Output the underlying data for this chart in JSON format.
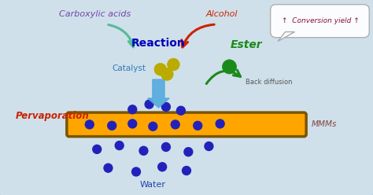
{
  "bg_color": "#cfe0ea",
  "membrane_color": "#FFA500",
  "membrane_edge_color": "#7a5500",
  "blue_ball_color": "#2222BB",
  "yellow_ball_color": "#BBAA00",
  "green_ball_color": "#1a8a1a",
  "arrow_blue_color": "#55aadd",
  "arrow_green_color": "#1a8a1a",
  "arrow_red_color": "#CC2200",
  "arrow_teal_color": "#55bb99",
  "text_carboxylic": "Carboxylic acids",
  "text_alcohol": "Alcohol",
  "text_reaction": "Reaction",
  "text_ester": "Ester",
  "text_catalyst": "Catalyst",
  "text_back_diffusion": "Back diffusion",
  "text_pervaporation": "Pervaporation",
  "text_mmms": "MMMs",
  "text_water": "Water",
  "text_conversion": "↑  Conversion yield ↑",
  "carboxylic_color": "#7744AA",
  "alcohol_color": "#CC2200",
  "reaction_color": "#0000BB",
  "ester_color": "#1a8a1a",
  "catalyst_color": "#3377BB",
  "pervaporation_color": "#CC2200",
  "mmms_color": "#884444",
  "water_color": "#2244AA",
  "conversion_color": "#881144",
  "border_color": "#aabbcc",
  "back_diff_color": "#555555"
}
